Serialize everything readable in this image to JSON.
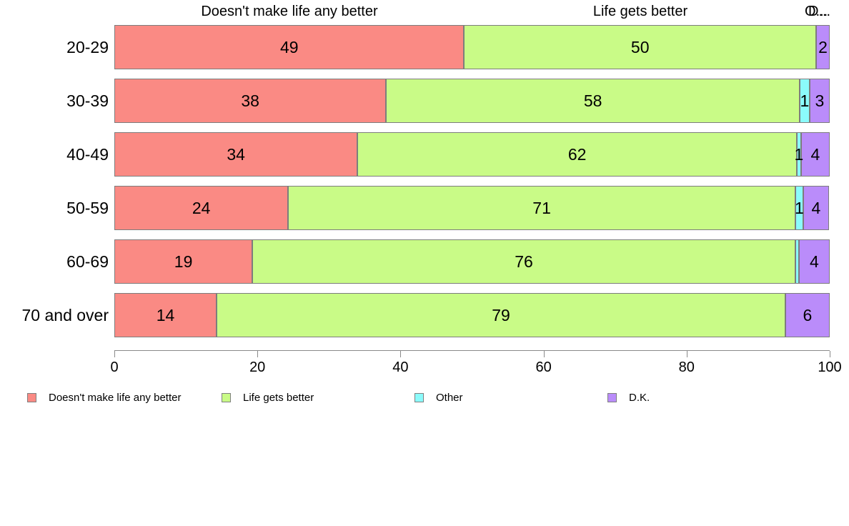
{
  "header": {
    "col_doesnt": "Doesn't make life any better",
    "col_life": "Life gets better",
    "col_other_truncated": "O...",
    "col_dk_truncated": "D..."
  },
  "chart_data": {
    "type": "bar",
    "orientation": "horizontal",
    "stacked": true,
    "title": "",
    "xlabel": "",
    "ylabel": "",
    "xlim": [
      0,
      100
    ],
    "x_ticks": [
      "0",
      "20",
      "40",
      "60",
      "80",
      "100"
    ],
    "grid": false,
    "legend_position": "bottom",
    "categories": [
      "20-29",
      "30-39",
      "40-49",
      "50-59",
      "60-69",
      "70 and over"
    ],
    "series": [
      {
        "id": "doesnt",
        "name": "Doesn't make life any better",
        "color": "#FA8A84",
        "values": [
          49,
          38,
          34,
          24,
          19,
          14
        ]
      },
      {
        "id": "life",
        "name": "Life gets better",
        "color": "#C9FB87",
        "values": [
          50,
          58,
          62,
          71,
          76,
          79
        ]
      },
      {
        "id": "other",
        "name": "Other",
        "color": "#8BFBFB",
        "values": [
          0,
          1,
          1,
          1,
          0.5,
          0
        ]
      },
      {
        "id": "dk",
        "name": "D.K.",
        "color": "#BA8CFA",
        "values": [
          2,
          3,
          4,
          4,
          4,
          6
        ]
      }
    ],
    "rows": [
      {
        "category": "20-29",
        "segments": [
          {
            "series": "doesnt",
            "width": 48.9,
            "label": "49"
          },
          {
            "series": "life",
            "width": 49.2,
            "label": "50"
          },
          {
            "series": "other",
            "width": 0,
            "label": ""
          },
          {
            "series": "dk",
            "width": 1.9,
            "label": "2"
          }
        ]
      },
      {
        "category": "30-39",
        "segments": [
          {
            "series": "doesnt",
            "width": 38.0,
            "label": "38"
          },
          {
            "series": "life",
            "width": 57.8,
            "label": "58"
          },
          {
            "series": "other",
            "width": 1.4,
            "label": "1"
          },
          {
            "series": "dk",
            "width": 2.8,
            "label": "3"
          }
        ]
      },
      {
        "category": "40-49",
        "segments": [
          {
            "series": "doesnt",
            "width": 34.0,
            "label": "34"
          },
          {
            "series": "life",
            "width": 61.4,
            "label": "62"
          },
          {
            "series": "other",
            "width": 0.6,
            "label": "1"
          },
          {
            "series": "dk",
            "width": 4.0,
            "label": "4"
          }
        ]
      },
      {
        "category": "50-59",
        "segments": [
          {
            "series": "doesnt",
            "width": 24.3,
            "label": "24"
          },
          {
            "series": "life",
            "width": 70.9,
            "label": "71"
          },
          {
            "series": "other",
            "width": 1.1,
            "label": "1"
          },
          {
            "series": "dk",
            "width": 3.6,
            "label": "4"
          }
        ]
      },
      {
        "category": "60-69",
        "segments": [
          {
            "series": "doesnt",
            "width": 19.3,
            "label": "19"
          },
          {
            "series": "life",
            "width": 75.9,
            "label": "76"
          },
          {
            "series": "other",
            "width": 0.5,
            "label": ""
          },
          {
            "series": "dk",
            "width": 4.3,
            "label": "4"
          }
        ]
      },
      {
        "category": "70 and over",
        "segments": [
          {
            "series": "doesnt",
            "width": 14.3,
            "label": "14"
          },
          {
            "series": "life",
            "width": 79.5,
            "label": "79"
          },
          {
            "series": "other",
            "width": 0,
            "label": ""
          },
          {
            "series": "dk",
            "width": 6.2,
            "label": "6"
          }
        ]
      }
    ],
    "legend": [
      {
        "label": "Doesn't make life any better",
        "color": "#FA8A84"
      },
      {
        "label": "Life gets better",
        "color": "#C9FB87"
      },
      {
        "label": "Other",
        "color": "#8BFBFB"
      },
      {
        "label": "D.K.",
        "color": "#BA8CFA"
      }
    ]
  }
}
